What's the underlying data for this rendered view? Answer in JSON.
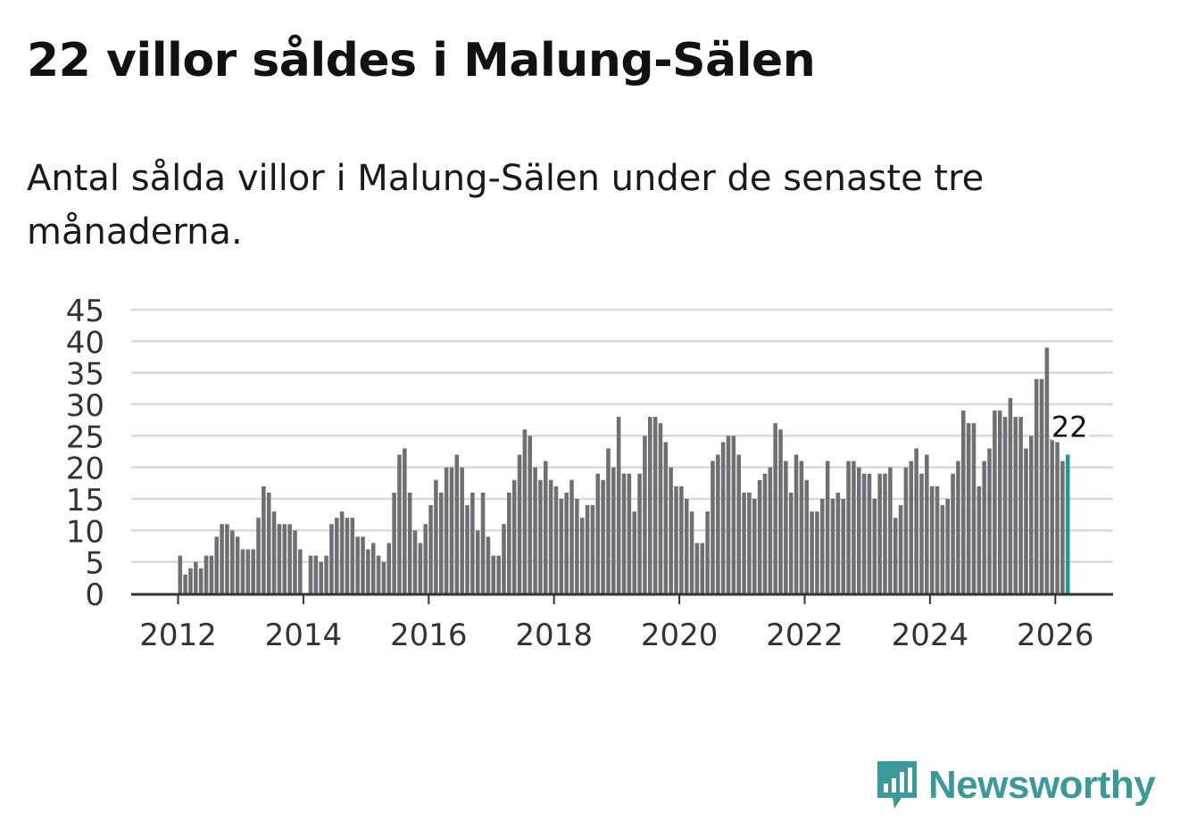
{
  "title": "22 villor såldes i Malung-Sälen",
  "subtitle": "Antal sålda villor i Malung-Sälen under de senaste tre månaderna.",
  "logo": {
    "text": "Newsworthy",
    "icon": "newsworthy-logo-icon"
  },
  "colors": {
    "bar": "#6e6e73",
    "highlight": "#1f9a94",
    "grid": "#d9d9d9",
    "axis": "#333333"
  },
  "chart_data": {
    "type": "bar",
    "title": "",
    "xlabel": "",
    "ylabel": "",
    "ylim": [
      0,
      45
    ],
    "yticks": [
      0,
      5,
      10,
      15,
      20,
      25,
      30,
      35,
      40,
      45
    ],
    "xticks": [
      "2012",
      "2014",
      "2016",
      "2018",
      "2020",
      "2022",
      "2024",
      "2026"
    ],
    "x_start": "2012-01",
    "x_unit": "month",
    "highlight_label": "22",
    "values": [
      6,
      3,
      4,
      5,
      4,
      6,
      6,
      9,
      11,
      11,
      10,
      9,
      7,
      7,
      7,
      12,
      17,
      16,
      13,
      11,
      11,
      11,
      10,
      7,
      0,
      6,
      6,
      5,
      6,
      11,
      12,
      13,
      12,
      12,
      9,
      9,
      7,
      8,
      6,
      5,
      8,
      16,
      22,
      23,
      16,
      10,
      8,
      11,
      14,
      18,
      16,
      20,
      20,
      22,
      20,
      14,
      16,
      10,
      16,
      9,
      6,
      6,
      11,
      16,
      18,
      22,
      26,
      25,
      20,
      18,
      21,
      18,
      17,
      15,
      16,
      18,
      15,
      12,
      14,
      14,
      19,
      18,
      23,
      20,
      28,
      19,
      19,
      13,
      19,
      25,
      28,
      28,
      27,
      24,
      20,
      17,
      17,
      15,
      13,
      8,
      8,
      13,
      21,
      22,
      24,
      25,
      25,
      22,
      16,
      16,
      15,
      18,
      19,
      20,
      27,
      26,
      21,
      16,
      22,
      21,
      18,
      13,
      13,
      15,
      21,
      15,
      16,
      15,
      21,
      21,
      20,
      19,
      19,
      15,
      19,
      19,
      20,
      12,
      14,
      20,
      21,
      23,
      19,
      22,
      17,
      17,
      14,
      15,
      19,
      21,
      29,
      27,
      27,
      17,
      21,
      23,
      29,
      29,
      28,
      31,
      28,
      28,
      23,
      25,
      34,
      34,
      39,
      25,
      24,
      21,
      22
    ]
  }
}
